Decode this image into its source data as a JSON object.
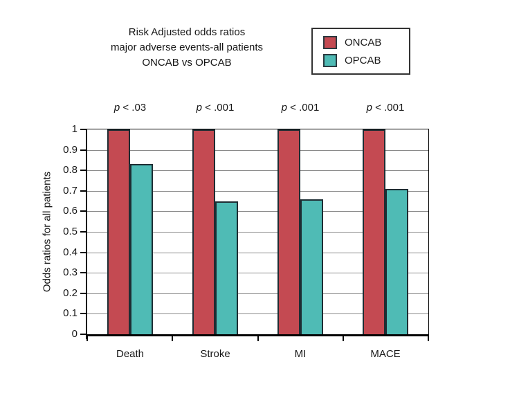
{
  "figure": {
    "title_lines": [
      "Risk Adjusted odds ratios",
      "major adverse events-all patients",
      "ONCAB vs OPCAB"
    ]
  },
  "legend": {
    "items": [
      {
        "label": "ONCAB",
        "color": "#c44a52"
      },
      {
        "label": "OPCAB",
        "color": "#4fbbb5"
      }
    ]
  },
  "chart_data": {
    "type": "bar",
    "title": "Risk Adjusted odds ratios major adverse events-all patients ONCAB vs OPCAB",
    "categories": [
      "Death",
      "Stroke",
      "MI",
      "MACE"
    ],
    "series": [
      {
        "name": "ONCAB",
        "color": "#c44a52",
        "values": [
          1.0,
          1.0,
          1.0,
          1.0
        ]
      },
      {
        "name": "OPCAB",
        "color": "#4fbbb5",
        "values": [
          0.83,
          0.65,
          0.66,
          0.71
        ]
      }
    ],
    "p_values": [
      "p < .03",
      "p < .001",
      "p < .001",
      "p < .001"
    ],
    "xlabel": "",
    "ylabel": "Odds ratios for all patients",
    "ylim": [
      0,
      1
    ],
    "ytick_labels": [
      "0",
      "0.1",
      "0.2",
      "0.3",
      "0.4",
      "0.5",
      "0.6",
      "0.7",
      "0.8",
      "0.9",
      "1"
    ],
    "grid": true,
    "legend_position": "top-right",
    "bar_border_color": "#1e2d33",
    "grid_color": "#8a8a8a",
    "axis_color": "#000000"
  }
}
